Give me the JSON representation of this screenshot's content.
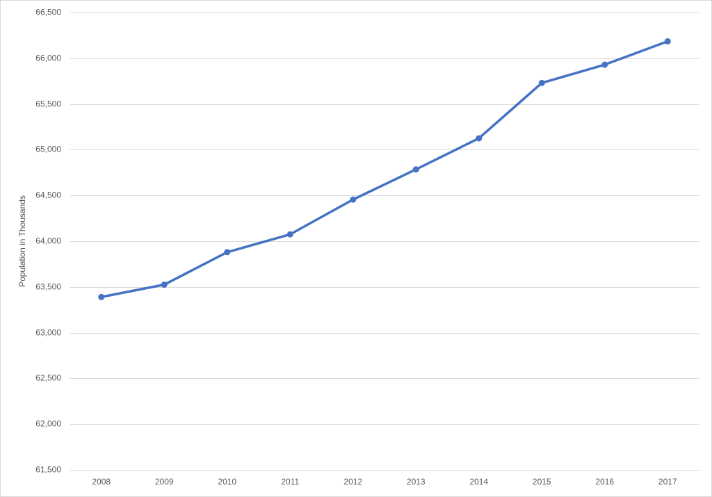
{
  "chart_data": {
    "type": "line",
    "y_label": "Population in Thousands",
    "categories": [
      "2008",
      "2009",
      "2010",
      "2011",
      "2012",
      "2013",
      "2014",
      "2015",
      "2016",
      "2017"
    ],
    "values": [
      63390,
      63525,
      63880,
      64075,
      64455,
      64785,
      65125,
      65730,
      65930,
      66185
    ],
    "color": "#4472c4",
    "ylim": [
      61500,
      66500
    ],
    "yticks": [
      {
        "value": 61500,
        "label": "61,500"
      },
      {
        "value": 62000,
        "label": "62,000"
      },
      {
        "value": 62500,
        "label": "62,500"
      },
      {
        "value": 63000,
        "label": "63,000"
      },
      {
        "value": 63500,
        "label": "63,500"
      },
      {
        "value": 64000,
        "label": "64,000"
      },
      {
        "value": 64500,
        "label": "64,500"
      },
      {
        "value": 65000,
        "label": "65,000"
      },
      {
        "value": 65500,
        "label": "65,500"
      },
      {
        "value": 66000,
        "label": "66,000"
      },
      {
        "value": 66500,
        "label": "66,500"
      }
    ],
    "grid": true
  }
}
